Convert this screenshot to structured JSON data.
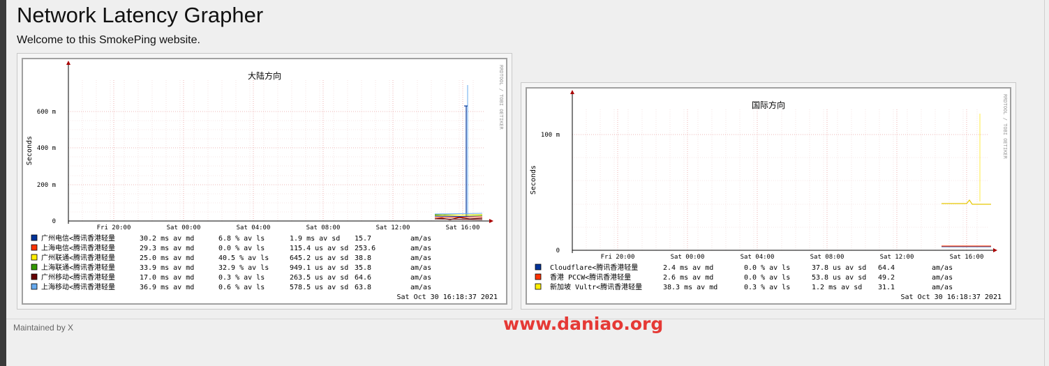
{
  "page": {
    "title": "Network Latency Grapher",
    "welcome": "Welcome to this SmokePing website.",
    "footer": "Maintained by X",
    "watermark": "www.daniao.org"
  },
  "colors": {
    "series": [
      "#003399",
      "#ff3300",
      "#ffee00",
      "#339900",
      "#660000",
      "#66aaee"
    ],
    "grid": "#e8a0a0",
    "axis": "#000000",
    "arrow": "#aa0000"
  },
  "graphs": [
    {
      "title": "大陆方向",
      "ylabel": "Seconds",
      "yticks": [
        "600 m",
        "400 m",
        "200 m",
        "0"
      ],
      "xticks": [
        "Fri 20:00",
        "Sat 00:00",
        "Sat 04:00",
        "Sat 08:00",
        "Sat 12:00",
        "Sat 16:00"
      ],
      "side_text": "RRDTOOL / TOBI OETIKER",
      "timestamp": "Sat Oct 30 16:18:37 2021",
      "legend": [
        {
          "color": "#003399",
          "label": "广州电信<腾讯香港轻量",
          "med": "30.2 ms av md",
          "loss": "6.8 % av ls",
          "sd": "1.9 ms av sd",
          "ratio": "15.7",
          "unit": "am/as"
        },
        {
          "color": "#ff3300",
          "label": "上海电信<腾讯香港轻量",
          "med": "29.3 ms av md",
          "loss": "0.0 % av ls",
          "sd": "115.4 us av sd",
          "ratio": "253.6",
          "unit": "am/as"
        },
        {
          "color": "#ffee00",
          "label": "广州联通<腾讯香港轻量",
          "med": "25.0 ms av md",
          "loss": "40.5 % av ls",
          "sd": "645.2 us av sd",
          "ratio": "38.8",
          "unit": "am/as"
        },
        {
          "color": "#339900",
          "label": "上海联通<腾讯香港轻量",
          "med": "33.9 ms av md",
          "loss": "32.9 % av ls",
          "sd": "949.1 us av sd",
          "ratio": "35.8",
          "unit": "am/as"
        },
        {
          "color": "#660000",
          "label": "广州移动<腾讯香港轻量",
          "med": "17.0 ms av md",
          "loss": "0.3 % av ls",
          "sd": "263.5 us av sd",
          "ratio": "64.6",
          "unit": "am/as"
        },
        {
          "color": "#66aaee",
          "label": "上海移动<腾讯香港轻量",
          "med": "36.9 ms av md",
          "loss": "0.6 % av ls",
          "sd": "578.5 us av sd",
          "ratio": "63.8",
          "unit": "am/as"
        }
      ]
    },
    {
      "title": "国际方向",
      "ylabel": "Seconds",
      "yticks": [
        "100 m",
        "0"
      ],
      "xticks": [
        "Fri 20:00",
        "Sat 00:00",
        "Sat 04:00",
        "Sat 08:00",
        "Sat 12:00",
        "Sat 16:00"
      ],
      "side_text": "RRDTOOL / TOBI OETIKER",
      "timestamp": "Sat Oct 30 16:18:37 2021",
      "legend": [
        {
          "color": "#003399",
          "label": "Cloudflare<腾讯香港轻量",
          "med": "2.4 ms av md",
          "loss": "0.0 % av ls",
          "sd": "37.8 us av sd",
          "ratio": "64.4",
          "unit": "am/as"
        },
        {
          "color": "#ff3300",
          "label": "香港 PCCW<腾讯香港轻量",
          "med": "2.6 ms av md",
          "loss": "0.0 % av ls",
          "sd": "53.8 us av sd",
          "ratio": "49.2",
          "unit": "am/as"
        },
        {
          "color": "#ffee00",
          "label": "新加坡 Vultr<腾讯香港轻量",
          "med": "38.3 ms av md",
          "loss": "0.3 % av ls",
          "sd": "1.2 ms av sd",
          "ratio": "31.1",
          "unit": "am/as"
        }
      ]
    }
  ]
}
